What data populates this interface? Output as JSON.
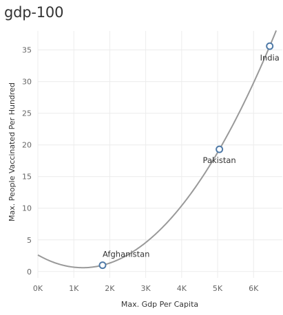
{
  "chart_title": "gdp-100",
  "chart_data": {
    "type": "scatter",
    "title": "gdp-100",
    "xlabel": "Max. Gdp Per Capita",
    "ylabel": "Max. People Vaccinated Per Hundred",
    "xlim": [
      0,
      6800
    ],
    "ylim": [
      -1,
      38
    ],
    "x_ticks": [
      0,
      1000,
      2000,
      3000,
      4000,
      5000,
      6000
    ],
    "x_tick_labels": [
      "0K",
      "1K",
      "2K",
      "3K",
      "4K",
      "5K",
      "6K"
    ],
    "y_ticks": [
      0,
      5,
      10,
      15,
      20,
      25,
      30,
      35
    ],
    "y_tick_labels": [
      "0",
      "5",
      "10",
      "15",
      "20",
      "25",
      "30",
      "35"
    ],
    "grid": true,
    "points": [
      {
        "label": "Afghanistan",
        "x": 1800,
        "y": 1.0
      },
      {
        "label": "Pakistan",
        "x": 5050,
        "y": 19.3
      },
      {
        "label": "India",
        "x": 6450,
        "y": 35.6
      }
    ],
    "trend_line": {
      "type": "polynomial",
      "degree": 2,
      "from_x": 0,
      "to_x": 6800
    },
    "colors": {
      "marker": "#4e79a7",
      "trend": "#999999",
      "grid": "#ececec"
    }
  }
}
